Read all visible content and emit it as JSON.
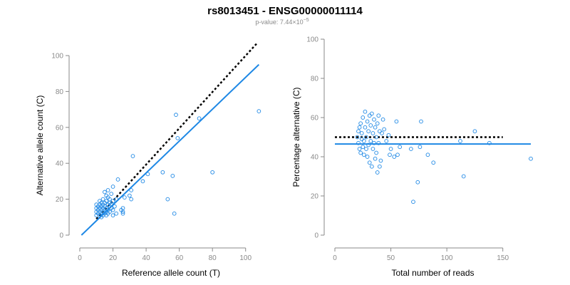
{
  "header": {
    "title": "rs8013451 - ENSG00000011114",
    "subtitle_prefix": "p-value: 7.44×10",
    "subtitle_exponent": "−5"
  },
  "colors": {
    "series": "#1e88e5",
    "reference": "#000000",
    "axis": "#8a8a8a"
  },
  "chart_data": [
    {
      "type": "scatter",
      "title": "",
      "xlabel": "Reference allele count (T)",
      "ylabel": "Alternative allele count (C)",
      "xlim": [
        0,
        110
      ],
      "ylim": [
        0,
        100
      ],
      "xticks": [
        "0",
        "20",
        "40",
        "60",
        "80",
        "100"
      ],
      "yticks": [
        "0",
        "20",
        "40",
        "60",
        "80",
        "100"
      ],
      "reference_line": {
        "style": "dotted",
        "x": [
          10,
          107
        ],
        "y": [
          9,
          107
        ]
      },
      "fit_line": {
        "style": "solid",
        "x": [
          1,
          108
        ],
        "y": [
          0,
          95
        ]
      },
      "points": [
        [
          10,
          11
        ],
        [
          10,
          13
        ],
        [
          10,
          15
        ],
        [
          10,
          17
        ],
        [
          11,
          12
        ],
        [
          11,
          14
        ],
        [
          11,
          16
        ],
        [
          12,
          11
        ],
        [
          12,
          13
        ],
        [
          12,
          15
        ],
        [
          12,
          17
        ],
        [
          12,
          19
        ],
        [
          13,
          10
        ],
        [
          13,
          12
        ],
        [
          13,
          14
        ],
        [
          13,
          16
        ],
        [
          13,
          18
        ],
        [
          14,
          11
        ],
        [
          14,
          13
        ],
        [
          14,
          15
        ],
        [
          14,
          17
        ],
        [
          14,
          20
        ],
        [
          15,
          12
        ],
        [
          15,
          14
        ],
        [
          15,
          16
        ],
        [
          15,
          18
        ],
        [
          15,
          24
        ],
        [
          16,
          11
        ],
        [
          16,
          13
        ],
        [
          16,
          15
        ],
        [
          16,
          19
        ],
        [
          16,
          22
        ],
        [
          17,
          12
        ],
        [
          17,
          14
        ],
        [
          17,
          17
        ],
        [
          17,
          21
        ],
        [
          17,
          25
        ],
        [
          18,
          13
        ],
        [
          18,
          16
        ],
        [
          18,
          18
        ],
        [
          18,
          20
        ],
        [
          19,
          15
        ],
        [
          19,
          17
        ],
        [
          19,
          23
        ],
        [
          20,
          11
        ],
        [
          20,
          14
        ],
        [
          20,
          19
        ],
        [
          20,
          27
        ],
        [
          21,
          16
        ],
        [
          22,
          12
        ],
        [
          22,
          20
        ],
        [
          23,
          31
        ],
        [
          25,
          14
        ],
        [
          26,
          13
        ],
        [
          26,
          15
        ],
        [
          26,
          12
        ],
        [
          27,
          21
        ],
        [
          30,
          22
        ],
        [
          31,
          20
        ],
        [
          31,
          25
        ],
        [
          32,
          44
        ],
        [
          38,
          30
        ],
        [
          41,
          34
        ],
        [
          50,
          35
        ],
        [
          53,
          20
        ],
        [
          56,
          33
        ],
        [
          57,
          12
        ],
        [
          58,
          67
        ],
        [
          59,
          54
        ],
        [
          72,
          65
        ],
        [
          80,
          35
        ],
        [
          108,
          69
        ]
      ]
    },
    {
      "type": "scatter",
      "title": "",
      "xlabel": "Total number of reads",
      "ylabel": "Percentage alternative (C)",
      "xlim": [
        0,
        175
      ],
      "ylim": [
        0,
        100
      ],
      "xticks": [
        "0",
        "50",
        "100",
        "150"
      ],
      "yticks": [
        "0",
        "20",
        "40",
        "60",
        "80",
        "100"
      ],
      "reference_line": {
        "style": "dotted",
        "x": [
          0,
          150
        ],
        "y": [
          50,
          50
        ]
      },
      "fit_line": {
        "style": "solid",
        "x": [
          0,
          175
        ],
        "y": [
          46.5,
          46.5
        ]
      },
      "points": [
        [
          20,
          50
        ],
        [
          21,
          53
        ],
        [
          21,
          47
        ],
        [
          22,
          44
        ],
        [
          22,
          55
        ],
        [
          23,
          57
        ],
        [
          23,
          42
        ],
        [
          24,
          49
        ],
        [
          24,
          52
        ],
        [
          25,
          45
        ],
        [
          25,
          60
        ],
        [
          26,
          41
        ],
        [
          26,
          48
        ],
        [
          27,
          55
        ],
        [
          27,
          63
        ],
        [
          28,
          44
        ],
        [
          28,
          50
        ],
        [
          29,
          58
        ],
        [
          29,
          40
        ],
        [
          30,
          46
        ],
        [
          30,
          53
        ],
        [
          31,
          61
        ],
        [
          31,
          37
        ],
        [
          32,
          48
        ],
        [
          32,
          56
        ],
        [
          33,
          35
        ],
        [
          33,
          62
        ],
        [
          34,
          44
        ],
        [
          34,
          52
        ],
        [
          35,
          47
        ],
        [
          35,
          59
        ],
        [
          36,
          39
        ],
        [
          36,
          55
        ],
        [
          37,
          42
        ],
        [
          37,
          50
        ],
        [
          38,
          32
        ],
        [
          38,
          57
        ],
        [
          39,
          47
        ],
        [
          39,
          61
        ],
        [
          40,
          35
        ],
        [
          40,
          53
        ],
        [
          41,
          38
        ],
        [
          42,
          52
        ],
        [
          43,
          59
        ],
        [
          44,
          54
        ],
        [
          46,
          48
        ],
        [
          48,
          51
        ],
        [
          49,
          41
        ],
        [
          50,
          44
        ],
        [
          53,
          40
        ],
        [
          55,
          58
        ],
        [
          56,
          41
        ],
        [
          58,
          45
        ],
        [
          68,
          44
        ],
        [
          70,
          17
        ],
        [
          74,
          27
        ],
        [
          76,
          45
        ],
        [
          77,
          58
        ],
        [
          83,
          41
        ],
        [
          88,
          37
        ],
        [
          112,
          48
        ],
        [
          115,
          30
        ],
        [
          125,
          53
        ],
        [
          138,
          47
        ],
        [
          175,
          39
        ]
      ]
    }
  ]
}
